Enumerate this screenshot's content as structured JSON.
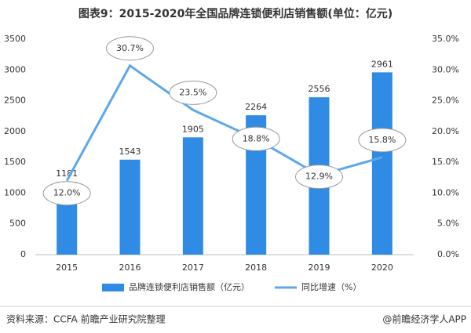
{
  "chart_data": {
    "type": "bar-line",
    "title": "图表9：2015-2020年全国品牌连锁便利店销售额(单位：亿元)",
    "categories": [
      "2015",
      "2016",
      "2017",
      "2018",
      "2019",
      "2020"
    ],
    "series": [
      {
        "name": "品牌连锁便利店销售额（亿元）",
        "type": "bar",
        "color": "#2f8be3",
        "values": [
          1181,
          1543,
          1905,
          2264,
          2556,
          2961
        ]
      },
      {
        "name": "同比增速（%）",
        "type": "line",
        "axis": "y2",
        "color": "#5ba7ee",
        "values": [
          12.0,
          30.7,
          23.5,
          18.8,
          12.9,
          15.8
        ],
        "value_labels": [
          "12.0%",
          "30.7%",
          "23.5%",
          "18.8%",
          "12.9%",
          "15.8%"
        ]
      }
    ],
    "ylim": [
      0,
      3500
    ],
    "yticks": [
      0,
      500,
      1000,
      1500,
      2000,
      2500,
      3000,
      3500
    ],
    "y2lim": [
      0,
      35
    ],
    "y2ticks": [
      {
        "value": 0,
        "label": "0.0%"
      },
      {
        "value": 5,
        "label": "5.0%"
      },
      {
        "value": 10,
        "label": "10.0%"
      },
      {
        "value": 15,
        "label": "15.0%"
      },
      {
        "value": 20,
        "label": "20.0%"
      },
      {
        "value": 25,
        "label": "25.0%"
      },
      {
        "value": 30,
        "label": "30.0%"
      },
      {
        "value": 35,
        "label": "35.0%"
      }
    ],
    "source": "资料来源：CCFA 前瞻产业研究院整理",
    "brand": "@前瞻经济学人APP"
  }
}
